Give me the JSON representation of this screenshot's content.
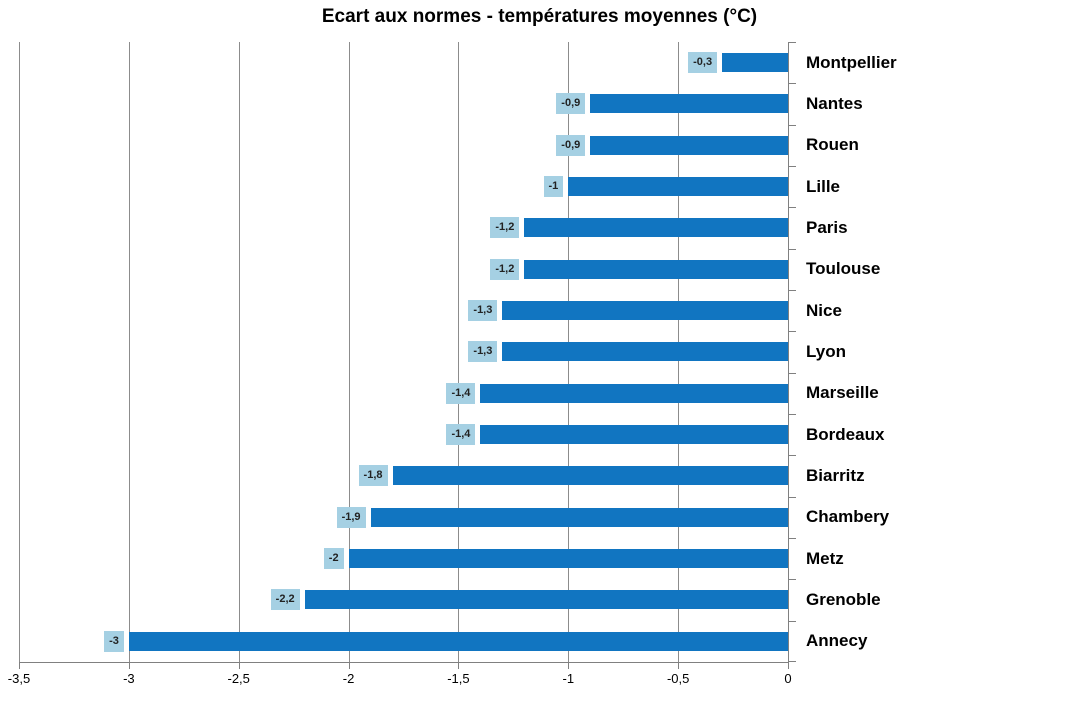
{
  "chart_data": {
    "type": "bar",
    "orientation": "horizontal",
    "title": "Ecart aux normes - températures moyennes (°C)",
    "categories": [
      "Montpellier",
      "Nantes",
      "Rouen",
      "Lille",
      "Paris",
      "Toulouse",
      "Nice",
      "Lyon",
      "Marseille",
      "Bordeaux",
      "Biarritz",
      "Chambery",
      "Metz",
      "Grenoble",
      "Annecy"
    ],
    "values": [
      -0.3,
      -0.9,
      -0.9,
      -1,
      -1.2,
      -1.2,
      -1.3,
      -1.3,
      -1.4,
      -1.4,
      -1.8,
      -1.9,
      -2,
      -2.2,
      -3
    ],
    "value_labels": [
      "-0,3",
      "-0,9",
      "-0,9",
      "-1",
      "-1,2",
      "-1,2",
      "-1,3",
      "-1,3",
      "-1,4",
      "-1,4",
      "-1,8",
      "-1,9",
      "-2",
      "-2,2",
      "-3"
    ],
    "x_tick_labels": [
      "-3,5",
      "-3",
      "-2,5",
      "-2",
      "-1,5",
      "-1",
      "-0,5",
      "0"
    ],
    "xlim": [
      -3.5,
      0
    ],
    "grid": true,
    "legend_position": "none",
    "colors": {
      "bar": "#1175C1",
      "value_label_bg": "#A5D0E3",
      "value_label_text": "#222222",
      "gridline": "#8C8C8C",
      "axis": "#808080",
      "text": "#000000"
    }
  }
}
